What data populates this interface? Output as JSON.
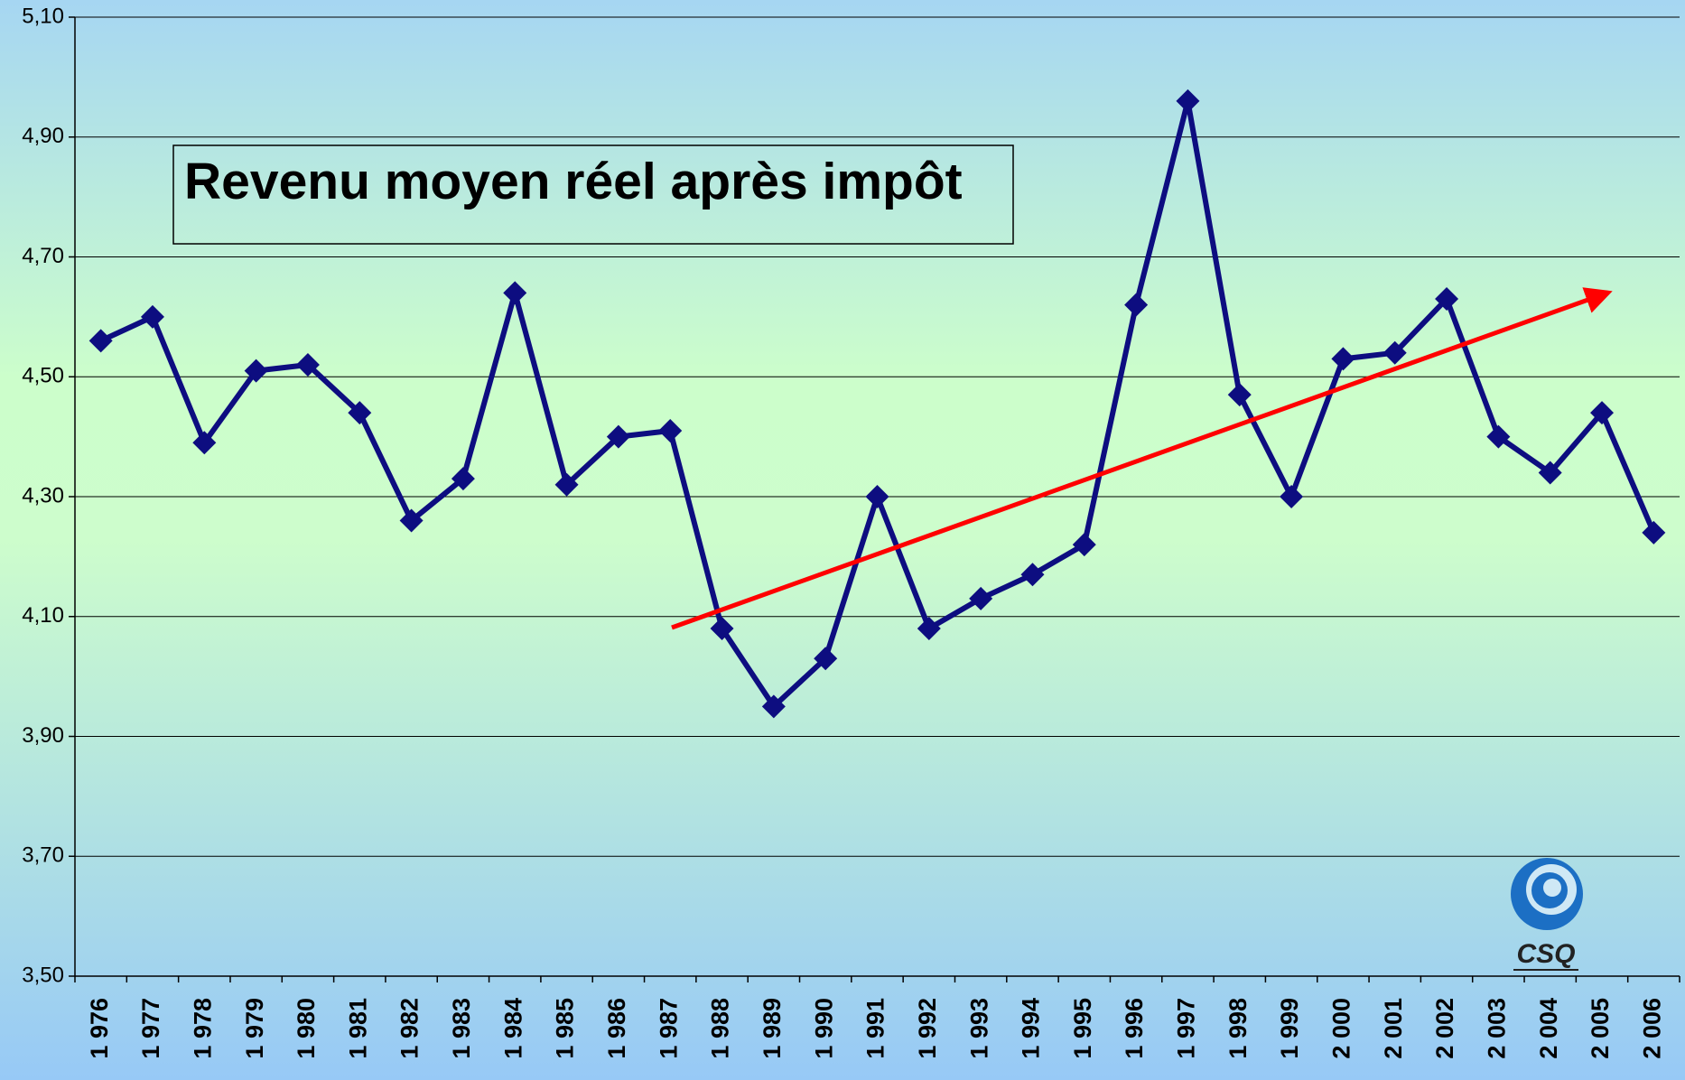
{
  "chart_data": {
    "type": "line",
    "title": "Revenu moyen réel après impôt",
    "categories": [
      "1 976",
      "1 977",
      "1 978",
      "1 979",
      "1 980",
      "1 981",
      "1 982",
      "1 983",
      "1 984",
      "1 985",
      "1 986",
      "1 987",
      "1 988",
      "1 989",
      "1 990",
      "1 991",
      "1 992",
      "1 993",
      "1 994",
      "1 995",
      "1 996",
      "1 997",
      "1 998",
      "1 999",
      "2 000",
      "2 001",
      "2 002",
      "2 003",
      "2 004",
      "2 005",
      "2 006"
    ],
    "series": [
      {
        "color": "#0d0d80",
        "values": [
          4.56,
          4.6,
          4.39,
          4.51,
          4.52,
          4.44,
          4.26,
          4.33,
          4.64,
          4.32,
          4.4,
          4.41,
          4.08,
          3.95,
          4.03,
          4.3,
          4.08,
          4.13,
          4.17,
          4.22,
          4.62,
          4.96,
          4.47,
          4.3,
          4.53,
          4.54,
          4.63,
          4.4,
          4.34,
          4.44,
          4.24
        ]
      }
    ],
    "ylim": [
      3.5,
      5.1
    ],
    "yticks": [
      {
        "value": 3.5,
        "label": "3,50"
      },
      {
        "value": 3.7,
        "label": "3,70"
      },
      {
        "value": 3.9,
        "label": "3,90"
      },
      {
        "value": 4.1,
        "label": "4,10"
      },
      {
        "value": 4.3,
        "label": "4,30"
      },
      {
        "value": 4.5,
        "label": "4,50"
      },
      {
        "value": 4.7,
        "label": "4,70"
      },
      {
        "value": 4.9,
        "label": "4,90"
      },
      {
        "value": 5.1,
        "label": "5,10"
      }
    ],
    "grid": true
  },
  "logo_text": "CSQ"
}
